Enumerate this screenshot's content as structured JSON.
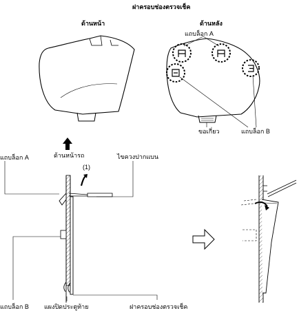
{
  "title": "ฝาครอบช่องตรวจเช็ค",
  "front_view": {
    "label": "ด้านหน้า"
  },
  "rear_view": {
    "label": "ด้านหลัง",
    "callouts": {
      "tab_a": "แถบล็อก A",
      "hook": "ขอเกี่ยว",
      "tab_b": "แถบล็อก B"
    }
  },
  "section_view": {
    "front_of_car": "ด้านหน้ารถ",
    "step": "(1)",
    "screwdriver": "ไขควงปากแบน",
    "tab_a": "แถบล็อก A",
    "tab_b": "แถบล็อก B",
    "door_panel": "แผงปิดประตูท้าย",
    "cover": "ฝาครอบช่องตรวจเช็ค"
  },
  "icons": {
    "up_arrow": "up-arrow-icon",
    "curved_arrow": "curved-arrow-icon",
    "next_arrow": "hollow-right-arrow-icon"
  }
}
